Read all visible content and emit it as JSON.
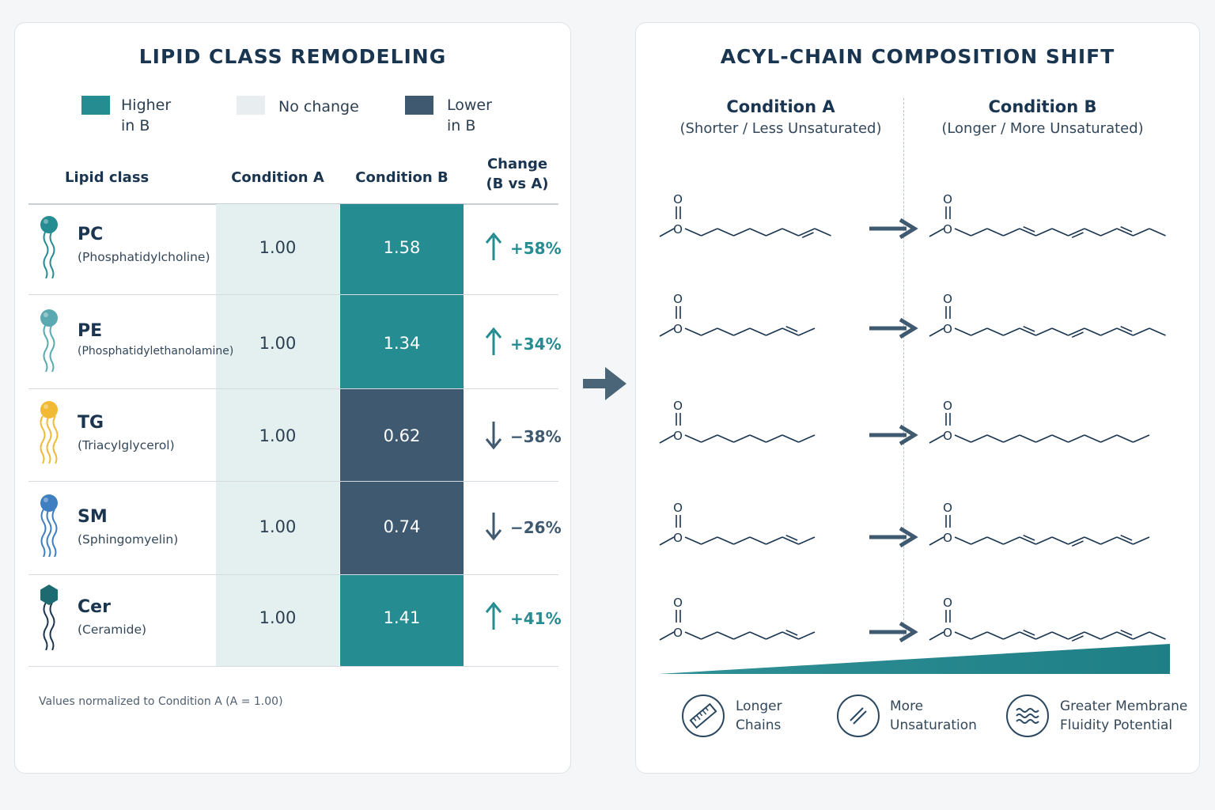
{
  "colors": {
    "higher": "#258c91",
    "nochange": "#e8eef0",
    "lower": "#3f5a70",
    "condA_band": "#e4efef",
    "up_arrow": "#258c91",
    "down_arrow": "#3f5a70",
    "ink": "#1a3550"
  },
  "left": {
    "title": "LIPID CLASS REMODELING",
    "legend": [
      {
        "label": "Higher\nin B",
        "color": "#258c91"
      },
      {
        "label": "No change",
        "color": "#e8eef0"
      },
      {
        "label": "Lower\nin B",
        "color": "#3f5a70"
      }
    ],
    "headers": {
      "lipid_class": "Lipid class",
      "cond_a": "Condition A",
      "cond_b": "Condition B",
      "change": "Change\n(B vs A)"
    },
    "rows": [
      {
        "abbr": "PC",
        "full": "(Phosphatidylcholine)",
        "a": "1.00",
        "b": "1.58",
        "change": "+58%",
        "direction": "up",
        "icon": "lipid-round-head-icon",
        "icon_color": "#258c91"
      },
      {
        "abbr": "PE",
        "full": "(Phosphatidylethanolamine)",
        "a": "1.00",
        "b": "1.34",
        "change": "+34%",
        "direction": "up",
        "icon": "lipid-round-head-icon",
        "icon_color": "#5aa9b0"
      },
      {
        "abbr": "TG",
        "full": "(Triacylglycerol)",
        "a": "1.00",
        "b": "0.62",
        "change": "−38%",
        "direction": "down",
        "icon": "lipid-three-tail-icon",
        "icon_color": "#f2b935"
      },
      {
        "abbr": "SM",
        "full": "(Sphingomyelin)",
        "a": "1.00",
        "b": "0.74",
        "change": "−26%",
        "direction": "down",
        "icon": "lipid-round-head-icon",
        "icon_color": "#3d7fc0"
      },
      {
        "abbr": "Cer",
        "full": "(Ceramide)",
        "a": "1.00",
        "b": "1.41",
        "change": "+41%",
        "direction": "up",
        "icon": "lipid-hexagon-head-icon",
        "icon_color": "#1d6b70"
      }
    ],
    "footnote": "Values normalized to Condition A (A = 1.00)"
  },
  "right": {
    "title": "ACYL-CHAIN COMPOSITION SHIFT",
    "cond_a": {
      "title": "Condition A",
      "subtitle": "(Shorter / Less Unsaturated)"
    },
    "cond_b": {
      "title": "Condition B",
      "subtitle": "(Longer / More Unsaturated)"
    },
    "atoms": {
      "carbonyl_o": "O",
      "ester_o": "O"
    },
    "chains": [
      {
        "a_segments": 9,
        "a_double_bonds": [
          7
        ],
        "b_segments": 13,
        "b_double_bonds": [
          4,
          7,
          10
        ]
      },
      {
        "a_segments": 8,
        "a_double_bonds": [
          6
        ],
        "b_segments": 13,
        "b_double_bonds": [
          4,
          7,
          10
        ]
      },
      {
        "a_segments": 8,
        "a_double_bonds": [],
        "b_segments": 12,
        "b_double_bonds": []
      },
      {
        "a_segments": 8,
        "a_double_bonds": [
          6
        ],
        "b_segments": 12,
        "b_double_bonds": [
          4,
          7,
          10
        ]
      },
      {
        "a_segments": 8,
        "a_double_bonds": [
          6
        ],
        "b_segments": 13,
        "b_double_bonds": [
          4,
          7,
          10
        ]
      }
    ],
    "features": [
      {
        "label": "Longer\nChains",
        "icon": "ruler-icon"
      },
      {
        "label": "More\nUnsaturation",
        "icon": "double-bond-icon"
      },
      {
        "label": "Greater Membrane\nFluidity Potential",
        "icon": "waves-icon"
      }
    ]
  }
}
